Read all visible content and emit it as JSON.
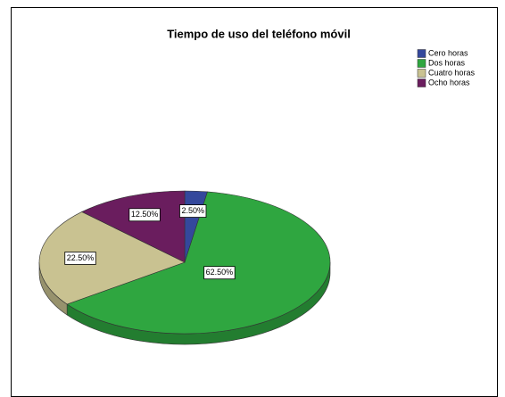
{
  "chart_data": {
    "type": "pie",
    "title": "Tiempo de uso del teléfono móvil",
    "categories": [
      "Cero horas",
      "Dos horas",
      "Cuatro horas",
      "Ocho horas"
    ],
    "values": [
      2.5,
      62.5,
      22.5,
      12.5
    ],
    "value_labels": [
      "2.50%",
      "62.50%",
      "22.50%",
      "12.50%"
    ],
    "colors": [
      "#34489c",
      "#2fa640",
      "#c9c291",
      "#6a1d5e"
    ],
    "legend": "top-right"
  }
}
